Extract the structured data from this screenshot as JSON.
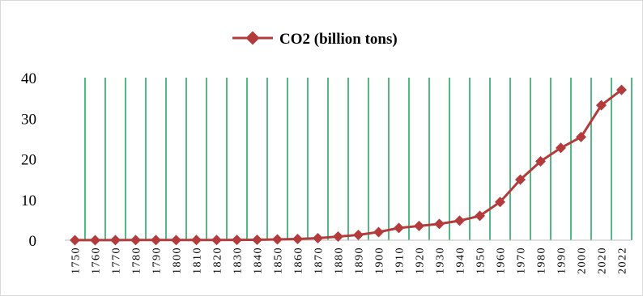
{
  "chart_data": {
    "type": "line",
    "title": "",
    "xlabel": "",
    "ylabel": "",
    "categories": [
      "1750",
      "1760",
      "1770",
      "1780",
      "1790",
      "1800",
      "1810",
      "1820",
      "1830",
      "1840",
      "1850",
      "1860",
      "1870",
      "1880",
      "1890",
      "1900",
      "1910",
      "1920",
      "1930",
      "1940",
      "1950",
      "1960",
      "1970",
      "1980",
      "1990",
      "2000",
      "2020",
      "2022"
    ],
    "series": [
      {
        "name": "CO2 (billion tons)",
        "values": [
          0.01,
          0.01,
          0.02,
          0.03,
          0.03,
          0.03,
          0.04,
          0.05,
          0.07,
          0.1,
          0.2,
          0.3,
          0.5,
          0.9,
          1.3,
          2.0,
          3.0,
          3.5,
          4.0,
          4.8,
          6.0,
          9.4,
          14.9,
          19.4,
          22.7,
          25.4,
          33.2,
          37.0
        ],
        "color": "#b33b3b"
      }
    ],
    "ylim": [
      0,
      40
    ],
    "yticks": [
      0,
      10,
      20,
      30,
      40
    ],
    "grid": "vertical",
    "grid_color": "#1aa05a",
    "legend": "top-center",
    "marker": "diamond"
  }
}
